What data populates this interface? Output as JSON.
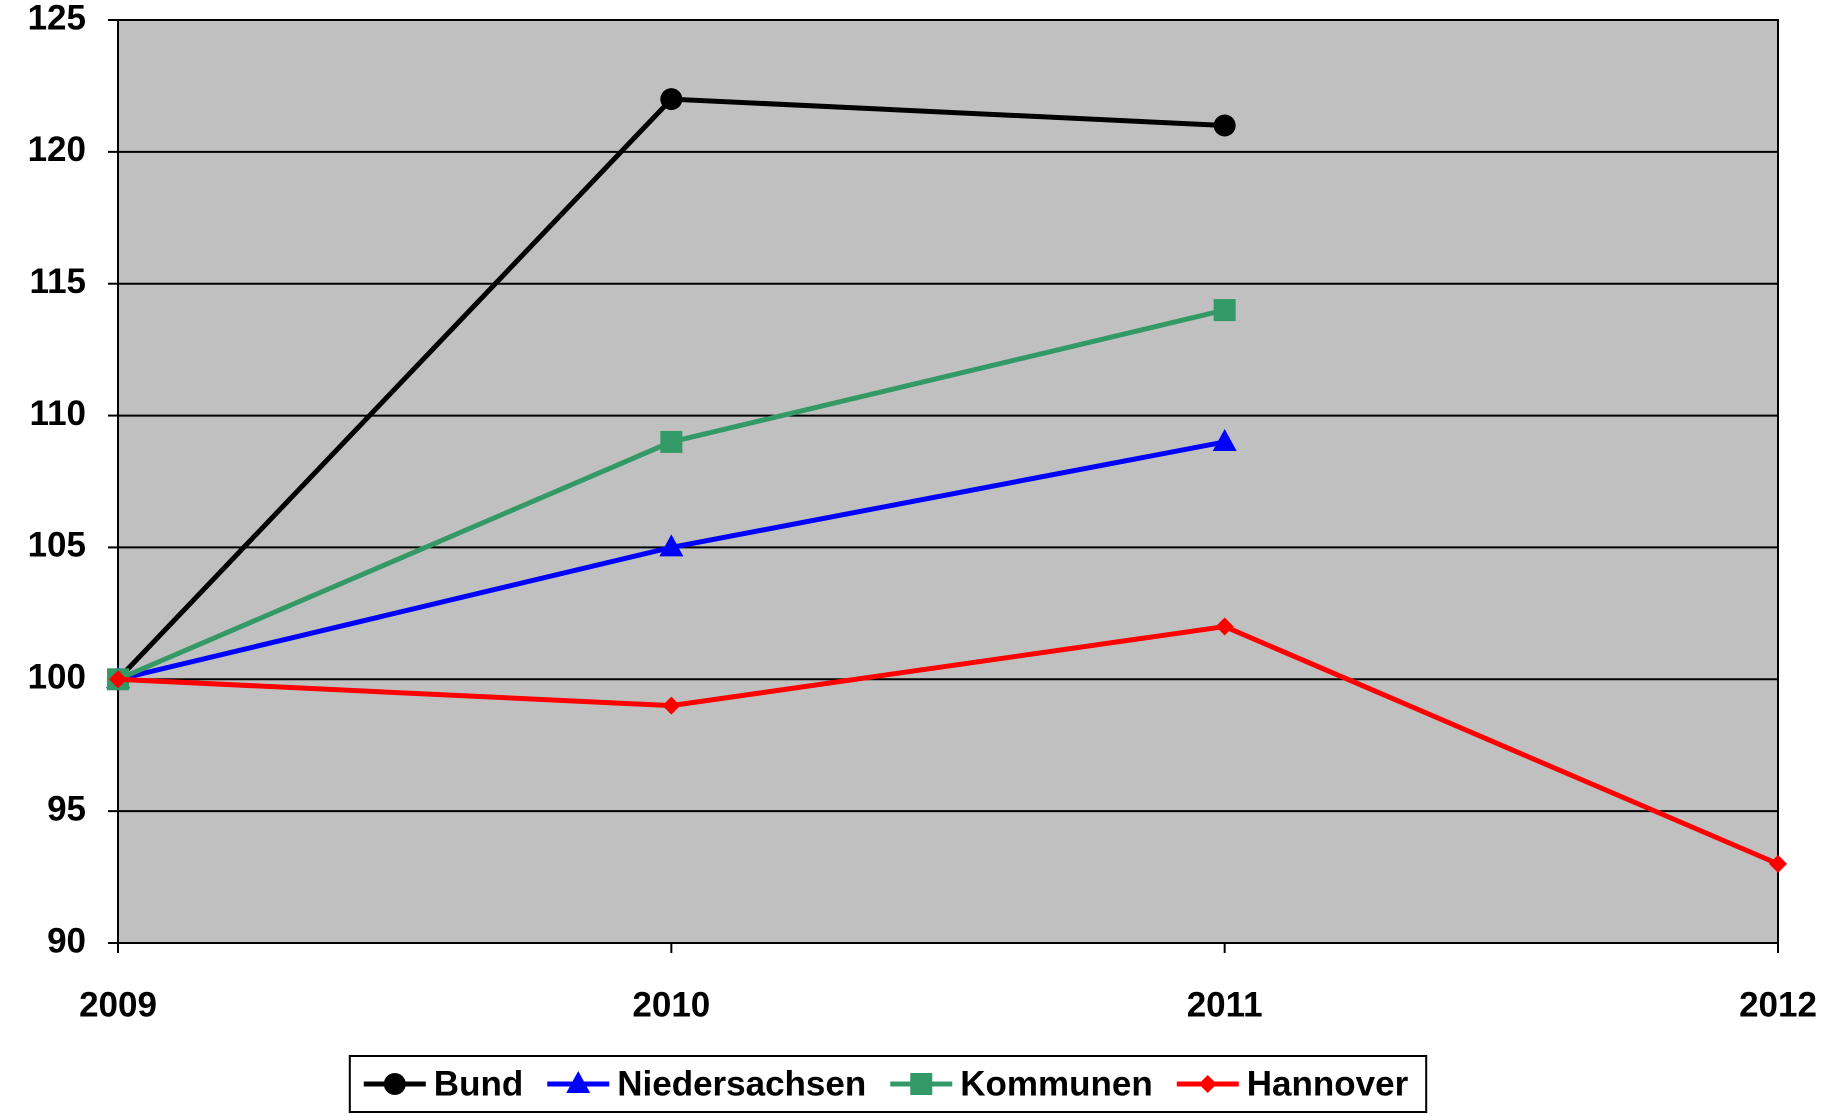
{
  "chart_data": {
    "type": "line",
    "x": [
      2009,
      2010,
      2011,
      2012
    ],
    "xlim": [
      2009,
      2012
    ],
    "xticks": [
      2009,
      2010,
      2011,
      2012
    ],
    "ylim": [
      90,
      125
    ],
    "yticks": [
      90,
      95,
      100,
      105,
      110,
      115,
      120,
      125
    ],
    "grid": true,
    "legend": "bottom",
    "series": [
      {
        "name": "Bund",
        "color": "#000000",
        "marker": "circle",
        "values": [
          100,
          122,
          121,
          null
        ]
      },
      {
        "name": "Niedersachsen",
        "color": "#0000ff",
        "marker": "triangle",
        "values": [
          100,
          105,
          109,
          null
        ]
      },
      {
        "name": "Kommunen",
        "color": "#339966",
        "marker": "square",
        "values": [
          100,
          109,
          114,
          null
        ]
      },
      {
        "name": "Hannover",
        "color": "#ff0000",
        "marker": "diamond",
        "values": [
          100,
          99,
          102,
          93
        ]
      }
    ]
  }
}
